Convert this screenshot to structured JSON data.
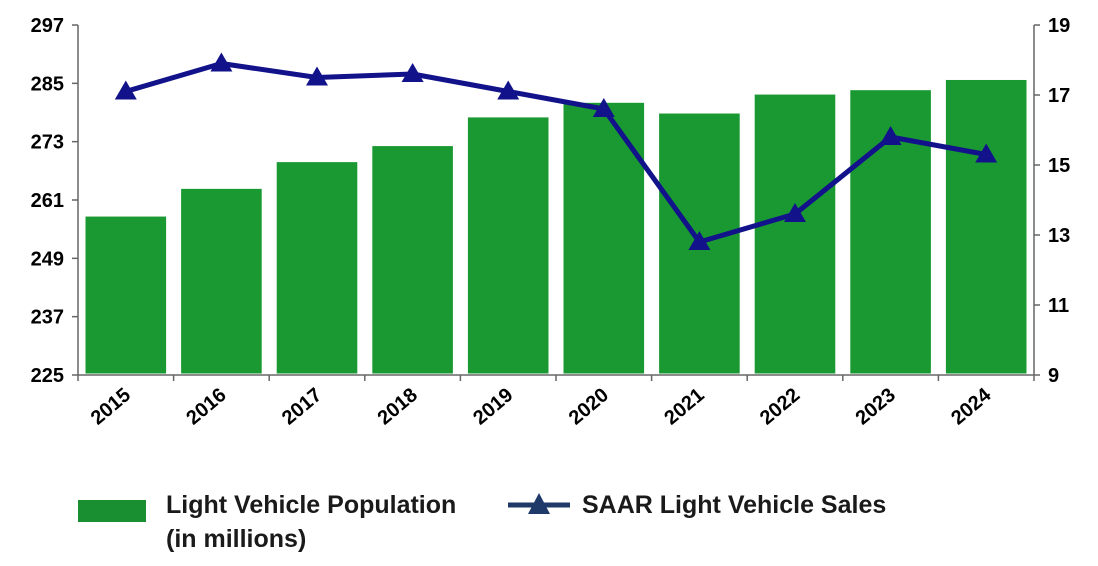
{
  "chart_data": {
    "type": "bar",
    "title": "",
    "categories": [
      "2015",
      "2016",
      "2017",
      "2018",
      "2019",
      "2020",
      "2021",
      "2022",
      "2023",
      "2024"
    ],
    "series": [
      {
        "name": "Light Vehicle Population (in millions)",
        "type": "bar",
        "axis": "left",
        "color": "#1a9932",
        "values": [
          257.9,
          263.6,
          269.1,
          272.4,
          278.3,
          281.3,
          279.1,
          283.0,
          283.9,
          286.0
        ]
      },
      {
        "name": "SAAR Light Vehicle Sales",
        "type": "line",
        "axis": "right",
        "color": "#12128a",
        "values": [
          17.1,
          17.9,
          17.5,
          17.6,
          17.1,
          16.6,
          12.8,
          13.6,
          15.8,
          15.3
        ]
      }
    ],
    "left_axis": {
      "min": 225,
      "max": 297,
      "ticks": [
        225,
        237,
        249,
        261,
        273,
        285,
        297
      ]
    },
    "right_axis": {
      "min": 9,
      "max": 19,
      "ticks": [
        9,
        11,
        13,
        15,
        17,
        19
      ]
    },
    "legend": {
      "bar_label_line1": "Light Vehicle Population",
      "bar_label_line2": "(in millions)",
      "line_label": "SAAR Light Vehicle Sales"
    }
  }
}
